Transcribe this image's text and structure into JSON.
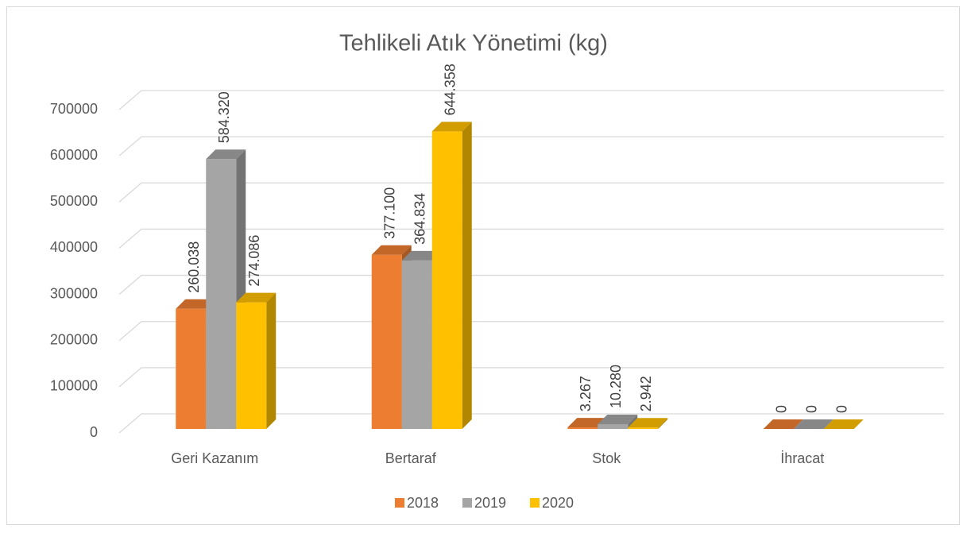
{
  "chart_data": {
    "type": "bar3d",
    "title": "Tehlikeli Atık Yönetimi (kg)",
    "categories": [
      "Geri Kazanım",
      "Bertaraf",
      "Stok",
      "İhracat"
    ],
    "series": [
      {
        "name": "2018",
        "color": "#ED7D31",
        "values": [
          260038,
          377100,
          3267,
          0
        ],
        "value_labels": [
          "260.038",
          "377.100",
          "3.267",
          "0"
        ]
      },
      {
        "name": "2019",
        "color": "#A5A5A5",
        "values": [
          584320,
          364834,
          10280,
          0
        ],
        "value_labels": [
          "584.320",
          "364.834",
          "10.280",
          "0"
        ]
      },
      {
        "name": "2020",
        "color": "#FFC000",
        "values": [
          274086,
          644358,
          2942,
          0
        ],
        "value_labels": [
          "274.086",
          "644.358",
          "2.942",
          "0"
        ]
      }
    ],
    "ylim": [
      0,
      700000
    ],
    "yticks": [
      0,
      100000,
      200000,
      300000,
      400000,
      500000,
      600000,
      700000
    ],
    "grid": true,
    "legend": "bottom"
  }
}
